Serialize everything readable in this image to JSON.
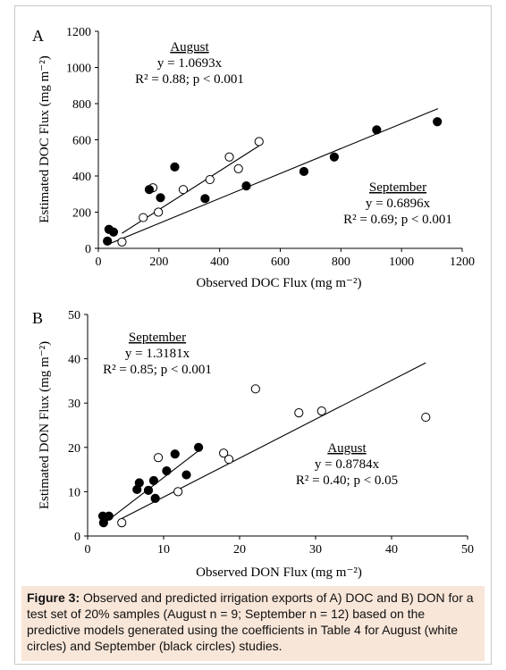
{
  "colors": {
    "caption_background": "#f8e6d9",
    "frame_border": "#c9c9c9",
    "marker_stroke": "#000000"
  },
  "caption": {
    "label": "Figure 3:",
    "text": "Observed and predicted irrigation exports of A) DOC and B) DON for a test set of 20% samples (August n = 9; September n = 12) based on the predictive models generated using the coefficients in Table 4 for August (white circles) and September (black circles) studies."
  },
  "chart_data": [
    {
      "type": "scatter",
      "panel_label": "A",
      "xlabel": "Observed DOC Flux (mg m⁻²)",
      "ylabel": "Estimated DOC Flux (mg m⁻²)",
      "xlim": [
        0,
        1200
      ],
      "ylim": [
        0,
        1200
      ],
      "xticks": [
        "0",
        "200",
        "400",
        "600",
        "800",
        "1000",
        "1200"
      ],
      "yticks": [
        "0",
        "200",
        "400",
        "600",
        "800",
        "1000",
        "1200"
      ],
      "series": [
        {
          "name": "August",
          "marker": "white circles",
          "equation": "y = 1.0693x",
          "stats": "R² = 0.88; p < 0.001",
          "slope": 1.0693,
          "fit_x": [
            78,
            530
          ],
          "x": [
            78,
            148,
            180,
            198,
            280,
            368,
            432,
            462,
            530
          ],
          "y": [
            35,
            170,
            335,
            200,
            325,
            380,
            505,
            440,
            590
          ]
        },
        {
          "name": "September",
          "marker": "black circles",
          "equation": "y = 0.6896x",
          "stats": "R² = 0.69; p < 0.001",
          "slope": 0.6896,
          "fit_x": [
            30,
            1120
          ],
          "x": [
            30,
            35,
            50,
            168,
            205,
            252,
            352,
            488,
            678,
            778,
            918,
            1118
          ],
          "y": [
            40,
            105,
            90,
            325,
            280,
            450,
            275,
            345,
            425,
            505,
            655,
            700
          ]
        }
      ]
    },
    {
      "type": "scatter",
      "panel_label": "B",
      "xlabel": "Observed DON Flux (mg m⁻²)",
      "ylabel": "Estimated DON Flux (mg m⁻²)",
      "xlim": [
        0,
        50
      ],
      "ylim": [
        0,
        50
      ],
      "xticks": [
        "0",
        "10",
        "20",
        "30",
        "40",
        "50"
      ],
      "yticks": [
        "0",
        "10",
        "20",
        "30",
        "40",
        "50"
      ],
      "series": [
        {
          "name": "September",
          "marker": "black circles",
          "equation": "y = 1.3181x",
          "stats": "R² = 0.85; p < 0.001",
          "slope": 1.3181,
          "fit_x": [
            2,
            14.6
          ],
          "x": [
            2,
            2.1,
            2.8,
            6.5,
            6.8,
            8,
            8.7,
            8.9,
            10.4,
            11.5,
            13,
            14.6
          ],
          "y": [
            4.5,
            3,
            4.5,
            10.5,
            12,
            10.3,
            12.5,
            8.5,
            14.7,
            18.5,
            13.8,
            20
          ]
        },
        {
          "name": "August",
          "marker": "white circles",
          "equation": "y = 0.8784x",
          "stats": "R² = 0.40; p < 0.05",
          "slope": 0.8784,
          "fit_x": [
            4.5,
            44.5
          ],
          "x": [
            4.5,
            9.3,
            11.9,
            17.9,
            18.6,
            22.1,
            27.8,
            30.8,
            44.5
          ],
          "y": [
            3,
            17.7,
            10,
            18.7,
            17.3,
            33.2,
            27.8,
            28.2,
            26.8
          ]
        }
      ]
    }
  ]
}
